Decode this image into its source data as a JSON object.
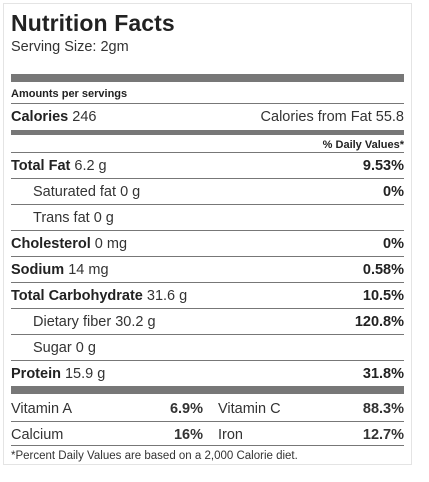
{
  "title": "Nutrition Facts",
  "serving_size": "Serving Size: 2gm",
  "amounts_per": "Amounts per servings",
  "calories": {
    "label": "Calories",
    "value": "246",
    "from_fat": "Calories from Fat 55.8"
  },
  "dv_header": "% Daily Values*",
  "rows": [
    {
      "label": "Total Fat",
      "amount": "6.2 g",
      "dv": "9.53%"
    },
    {
      "label": "Saturated fat",
      "amount": "0 g",
      "dv": "0%"
    },
    {
      "label": "Trans fat",
      "amount": "0 g",
      "dv": ""
    },
    {
      "label": "Cholesterol",
      "amount": "0 mg",
      "dv": "0%"
    },
    {
      "label": "Sodium",
      "amount": "14 mg",
      "dv": "0.58%"
    },
    {
      "label": "Total Carbohydrate",
      "amount": "31.6 g",
      "dv": "10.5%"
    },
    {
      "label": "Dietary fiber",
      "amount": "30.2 g",
      "dv": "120.8%"
    },
    {
      "label": "Sugar",
      "amount": "0 g",
      "dv": ""
    },
    {
      "label": "Protein",
      "amount": "15.9 g",
      "dv": "31.8%"
    }
  ],
  "vitamins": [
    {
      "label": "Vitamin A",
      "dv": "6.9%"
    },
    {
      "label": "Vitamin C",
      "dv": "88.3%"
    },
    {
      "label": "Calcium",
      "dv": "16%"
    },
    {
      "label": "Iron",
      "dv": "12.7%"
    }
  ],
  "footnote": "*Percent Daily Values are based on a 2,000 Calorie diet."
}
